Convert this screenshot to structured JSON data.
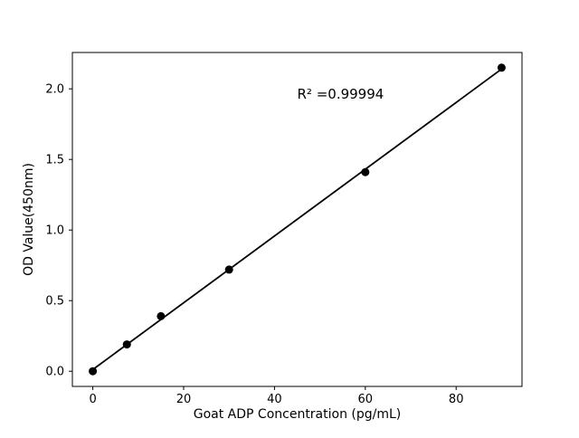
{
  "figure": {
    "background": "#ffffff",
    "foreground": "#000000"
  },
  "chart_data": {
    "type": "scatter",
    "title": "",
    "xlabel": "Goat ADP Concentration (pg/mL)",
    "ylabel": "OD Value(450nm)",
    "x": [
      0,
      7.5,
      15,
      30,
      60,
      90
    ],
    "y": [
      0.0,
      0.19,
      0.39,
      0.72,
      1.41,
      2.15
    ],
    "fit_line": {
      "x": [
        0,
        90
      ],
      "y": [
        0.012,
        2.14
      ]
    },
    "annotation": {
      "text": "R² =0.99994",
      "x": 45,
      "y": 1.93
    },
    "xticks": [
      0,
      20,
      40,
      60,
      80
    ],
    "xticklabels": [
      "0",
      "20",
      "40",
      "60",
      "80"
    ],
    "yticks": [
      0.0,
      0.5,
      1.0,
      1.5,
      2.0
    ],
    "yticklabels": [
      "0.0",
      "0.5",
      "1.0",
      "1.5",
      "2.0"
    ],
    "xlim": [
      -4.5,
      94.5
    ],
    "ylim": [
      -0.1075,
      2.2575
    ],
    "grid": false,
    "legend": null,
    "marker_color": "#000000",
    "line_color": "#000000"
  }
}
